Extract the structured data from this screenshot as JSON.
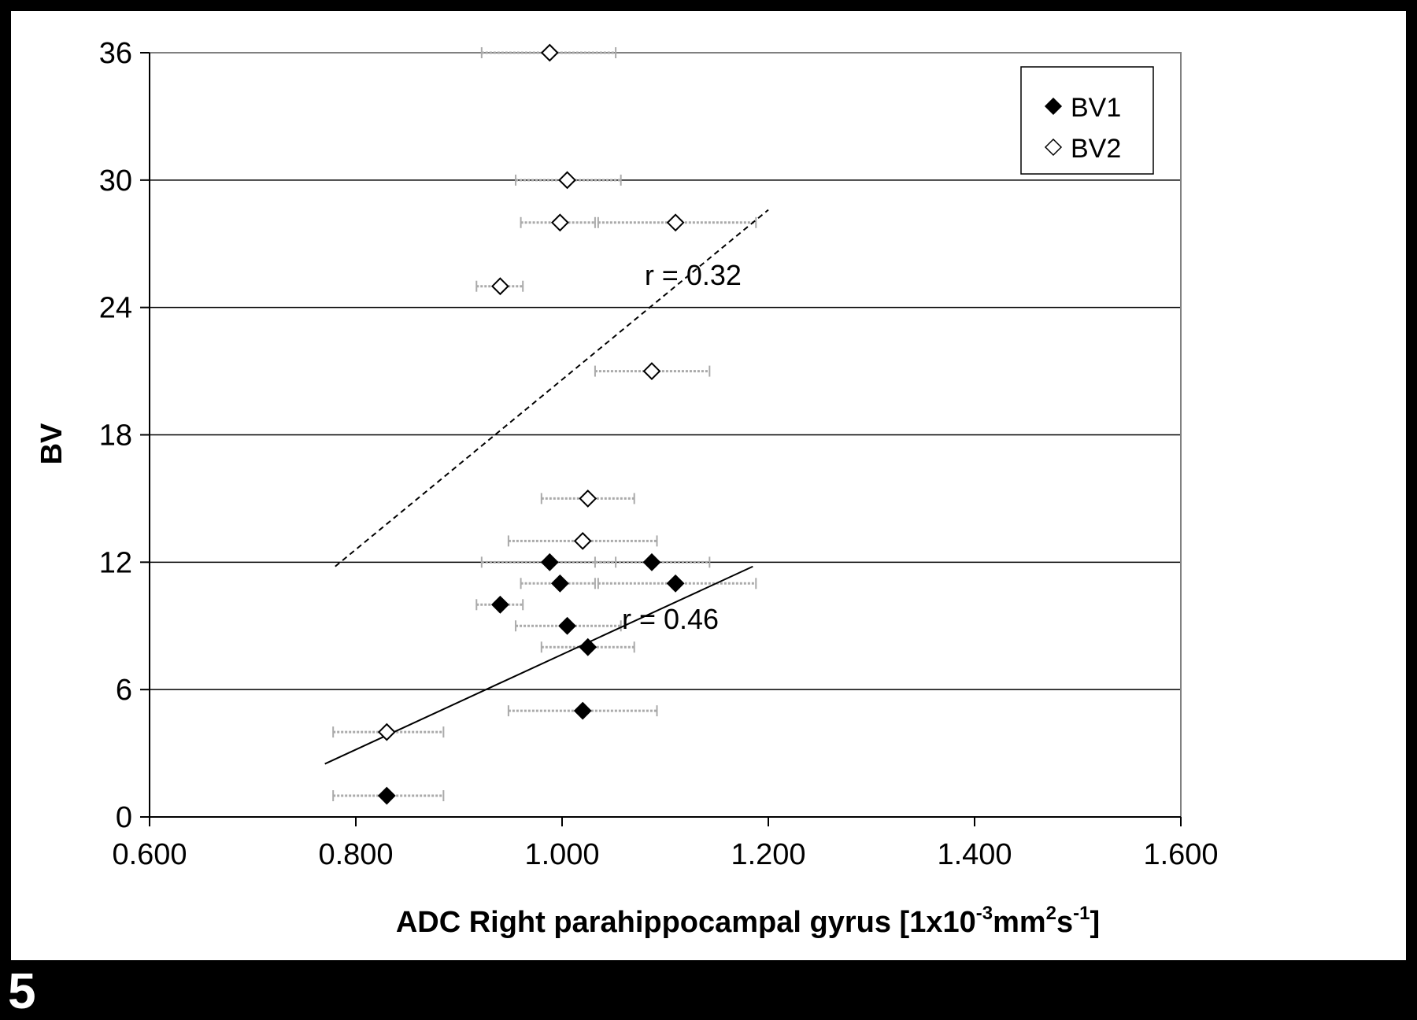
{
  "figure_label": "5",
  "chart_data": {
    "type": "scatter",
    "xlabel": "ADC Right parahippocampal gyrus [1x10-3mm2s-1]",
    "xlabel_parts": {
      "base": "ADC Right parahippocampal gyrus [1x10",
      "sup1": "-3",
      "mid": "mm",
      "sup2": "2",
      "mid2": "s",
      "sup3": "-1",
      "end": "]"
    },
    "ylabel": "BV",
    "xlim": [
      0.6,
      1.6
    ],
    "ylim": [
      0,
      36
    ],
    "x_ticks": [
      "0.600",
      "0.800",
      "1.000",
      "1.200",
      "1.400",
      "1.600"
    ],
    "y_ticks": [
      "0",
      "6",
      "12",
      "18",
      "24",
      "30",
      "36"
    ],
    "grid": "horizontal",
    "legend_position": "top-right",
    "series": [
      {
        "name": "BV1",
        "marker": "filled-diamond",
        "color": "#000000",
        "points": [
          {
            "x": 0.83,
            "y": 1,
            "xerr": [
              0.778,
              0.885
            ]
          },
          {
            "x": 1.02,
            "y": 5,
            "xerr": [
              0.948,
              1.092
            ]
          },
          {
            "x": 1.025,
            "y": 8,
            "xerr": [
              0.98,
              1.07
            ]
          },
          {
            "x": 1.005,
            "y": 9,
            "xerr": [
              0.955,
              1.057
            ]
          },
          {
            "x": 0.94,
            "y": 10,
            "xerr": [
              0.917,
              0.962
            ]
          },
          {
            "x": 0.998,
            "y": 11,
            "xerr": [
              0.96,
              1.032
            ]
          },
          {
            "x": 1.11,
            "y": 11,
            "xerr": [
              1.035,
              1.188
            ]
          },
          {
            "x": 0.988,
            "y": 12,
            "xerr": [
              0.922,
              1.052
            ]
          },
          {
            "x": 1.087,
            "y": 12,
            "xerr": [
              1.032,
              1.143
            ]
          }
        ]
      },
      {
        "name": "BV2",
        "marker": "open-diamond",
        "color": "#000000",
        "points": [
          {
            "x": 0.83,
            "y": 4,
            "xerr": [
              0.778,
              0.885
            ]
          },
          {
            "x": 1.02,
            "y": 13,
            "xerr": [
              0.948,
              1.092
            ]
          },
          {
            "x": 1.025,
            "y": 15,
            "xerr": [
              0.98,
              1.07
            ]
          },
          {
            "x": 1.087,
            "y": 21,
            "xerr": [
              1.032,
              1.143
            ]
          },
          {
            "x": 0.94,
            "y": 25,
            "xerr": [
              0.917,
              0.962
            ]
          },
          {
            "x": 0.998,
            "y": 28,
            "xerr": [
              0.96,
              1.032
            ]
          },
          {
            "x": 1.11,
            "y": 28,
            "xerr": [
              1.035,
              1.188
            ]
          },
          {
            "x": 1.005,
            "y": 30,
            "xerr": [
              0.955,
              1.057
            ]
          },
          {
            "x": 0.988,
            "y": 36,
            "xerr": [
              0.922,
              1.052
            ]
          }
        ]
      }
    ],
    "trendlines": [
      {
        "series": "BV1",
        "style": "solid",
        "from": {
          "x": 0.77,
          "y": 2.5
        },
        "to": {
          "x": 1.185,
          "y": 11.8
        },
        "label": "r = 0.46",
        "label_anchor": {
          "x": 1.105,
          "y": 9.3
        }
      },
      {
        "series": "BV2",
        "style": "dashed",
        "from": {
          "x": 0.78,
          "y": 11.8
        },
        "to": {
          "x": 1.2,
          "y": 28.6
        },
        "label": "r = 0.32",
        "label_anchor": {
          "x": 1.127,
          "y": 25.5
        }
      }
    ]
  }
}
